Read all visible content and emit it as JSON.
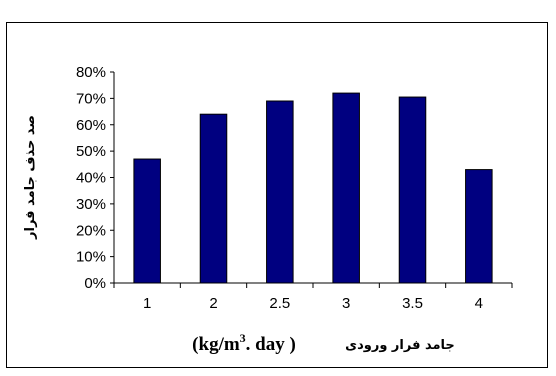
{
  "chart_data": {
    "type": "bar",
    "categories": [
      "1",
      "2",
      "2.5",
      "3",
      "3.5",
      "4"
    ],
    "values": [
      47,
      64,
      69,
      72,
      70.5,
      43
    ],
    "ylim": [
      0,
      80
    ],
    "yticks": [
      "0%",
      "10%",
      "20%",
      "30%",
      "40%",
      "50%",
      "60%",
      "70%",
      "80%"
    ],
    "ylabel": "صد حذف جامد فرار",
    "xlabel": {
      "rtl_text": "جامد فرار ورودی",
      "unit_open": "(kg/m",
      "unit_sup": "3",
      "unit_close": ". day )"
    },
    "grid": false,
    "legend": "none",
    "bar_color": "#000080"
  }
}
